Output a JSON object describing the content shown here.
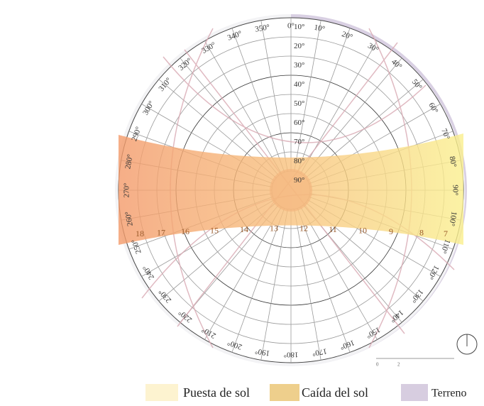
{
  "azimuth_labels": [
    "0°",
    "10°",
    "20°",
    "30°",
    "40°",
    "50°",
    "60°",
    "70°",
    "80°",
    "90°",
    "100°",
    "110°",
    "120°",
    "130°",
    "140°",
    "150°",
    "160°",
    "170°",
    "180°",
    "190°",
    "200°",
    "210°",
    "220°",
    "230°",
    "240°",
    "250°",
    "260°",
    "270°",
    "280°",
    "290°",
    "300°",
    "310°",
    "320°",
    "330°",
    "340°",
    "350°"
  ],
  "altitude_labels": [
    "10°",
    "20°",
    "30°",
    "40°",
    "50°",
    "60°",
    "70°",
    "80°",
    "90°"
  ],
  "hour_labels": [
    "18",
    "17",
    "16",
    "15",
    "14",
    "13",
    "12",
    "11",
    "10",
    "9",
    "8",
    "7"
  ],
  "legend": [
    "Puesta de sol",
    "Caída del sol",
    "Terreno"
  ]
}
